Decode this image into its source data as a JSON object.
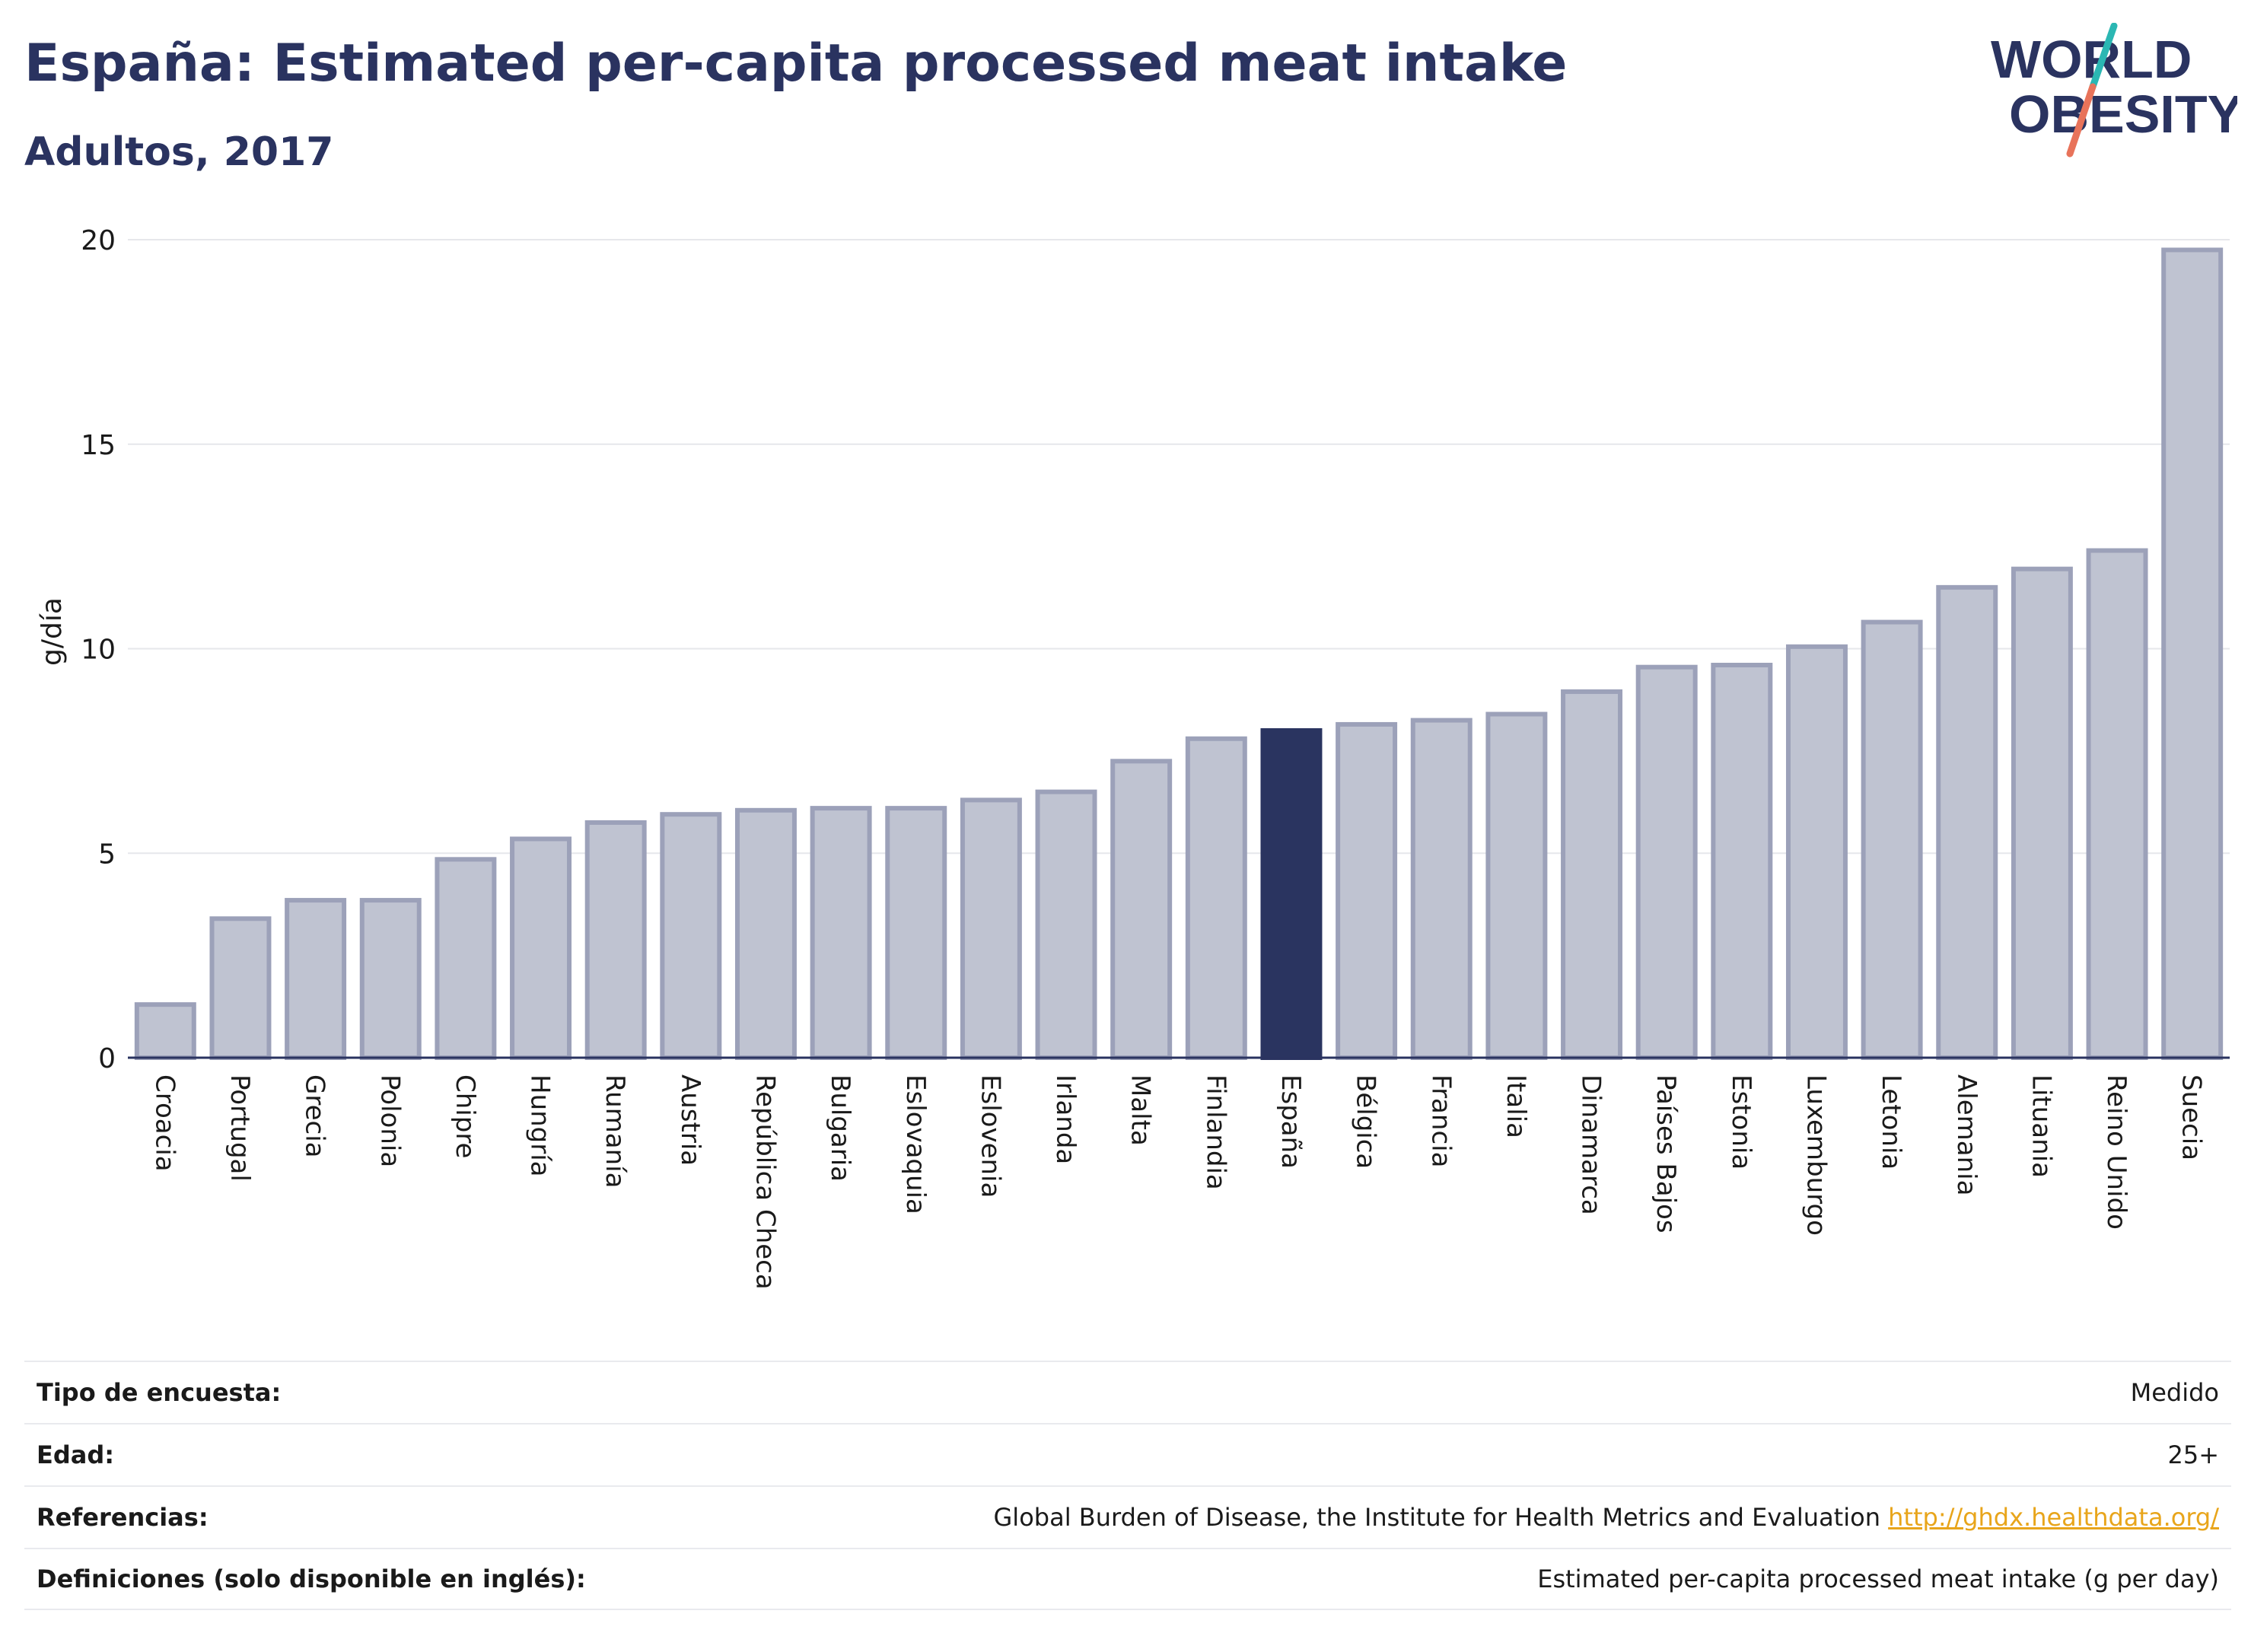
{
  "title": "España: Estimated per-capita processed meat intake",
  "subtitle": "Adultos, 2017",
  "logo": {
    "line1": "WORLD",
    "line2": "OBESITY"
  },
  "colors": {
    "highlight": "#2a3460",
    "bar": "#bfc3d1",
    "bar_border": "#9ca1b9",
    "text": "#2a3360",
    "link": "#e8a51b"
  },
  "chart_data": {
    "type": "bar",
    "ylabel": "g/día",
    "ylim": [
      0,
      20
    ],
    "yticks": [
      0,
      5,
      10,
      15,
      20
    ],
    "grid": true,
    "highlight": "España",
    "categories": [
      "Croacia",
      "Portugal",
      "Grecia",
      "Polonia",
      "Chipre",
      "Hungría",
      "Rumanía",
      "Austria",
      "República Checa",
      "Bulgaria",
      "Eslovaquia",
      "Eslovenia",
      "Irlanda",
      "Malta",
      "Finlandia",
      "España",
      "Bélgica",
      "Francia",
      "Italia",
      "Dinamarca",
      "Países Bajos",
      "Estonia",
      "Luxemburgo",
      "Letonia",
      "Alemania",
      "Lituania",
      "Reino Unido",
      "Suecia"
    ],
    "values": [
      1.3,
      3.4,
      3.85,
      3.85,
      4.85,
      5.35,
      5.75,
      5.95,
      6.05,
      6.1,
      6.1,
      6.3,
      6.5,
      7.25,
      7.8,
      8.0,
      8.15,
      8.25,
      8.4,
      8.95,
      9.55,
      9.6,
      10.05,
      10.65,
      11.5,
      11.95,
      12.4,
      19.75
    ]
  },
  "info": [
    {
      "label": "Tipo de encuesta:",
      "value": "Medido"
    },
    {
      "label": "Edad:",
      "value": "25+"
    },
    {
      "label": "Referencias:",
      "value": "Global Burden of Disease, the Institute for Health Metrics and Evaluation",
      "link": "http://ghdx.healthdata.org/"
    },
    {
      "label": "Definiciones (solo disponible en inglés):",
      "value": "Estimated per-capita processed meat intake (g per day)"
    }
  ]
}
